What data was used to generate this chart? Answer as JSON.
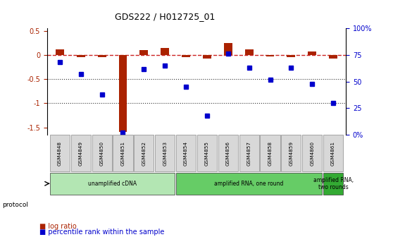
{
  "title": "GDS222 / H012725_01",
  "samples": [
    "GSM4848",
    "GSM4849",
    "GSM4850",
    "GSM4851",
    "GSM4852",
    "GSM4853",
    "GSM4854",
    "GSM4855",
    "GSM4856",
    "GSM4857",
    "GSM4858",
    "GSM4859",
    "GSM4860",
    "GSM4861"
  ],
  "log_ratio": [
    0.12,
    -0.04,
    -0.05,
    -1.6,
    0.1,
    0.15,
    -0.05,
    -0.07,
    0.25,
    0.12,
    -0.03,
    -0.04,
    0.07,
    -0.07
  ],
  "percentile": [
    68,
    57,
    38,
    2,
    62,
    65,
    45,
    18,
    76,
    63,
    52,
    63,
    48,
    30
  ],
  "protocols": [
    {
      "label": "unamplified cDNA",
      "start": 0,
      "end": 6,
      "color": "#b3e6b3"
    },
    {
      "label": "amplified RNA, one round",
      "start": 6,
      "end": 13,
      "color": "#66cc66"
    },
    {
      "label": "amplified RNA,\ntwo rounds",
      "start": 13,
      "end": 14,
      "color": "#33aa33"
    }
  ],
  "ylim_left": [
    -1.65,
    0.55
  ],
  "ylim_right": [
    0,
    100
  ],
  "bar_color": "#aa2200",
  "dot_color": "#0000cc",
  "hline_color": "#cc2222",
  "dotted_line_color": "#333333",
  "bg_color": "#ffffff",
  "left_yticks": [
    0.5,
    0.0,
    -0.5,
    -1.0,
    -1.5
  ],
  "left_yticklabels": [
    "0.5",
    "0",
    "-0.5",
    "-1",
    "-1.5"
  ],
  "right_yticks": [
    100,
    75,
    50,
    25,
    0
  ],
  "right_yticklabels": [
    "100%",
    "75",
    "50",
    "25",
    "0%"
  ]
}
